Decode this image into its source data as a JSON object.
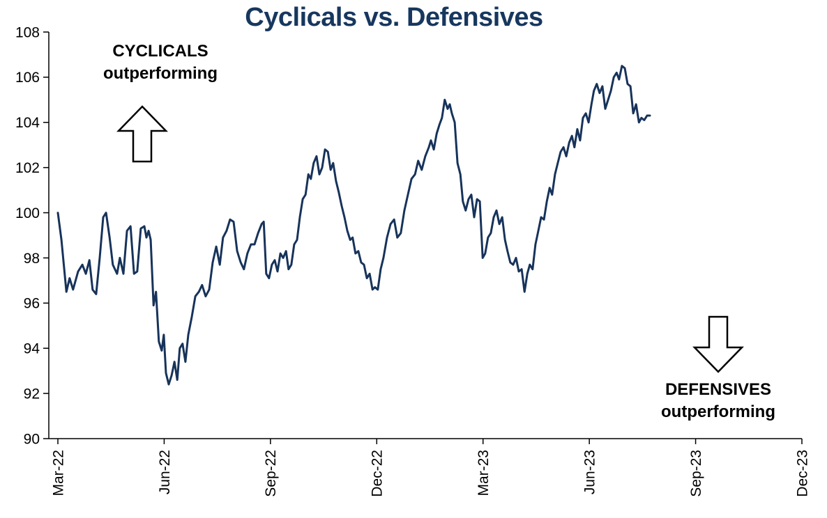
{
  "title": "Cyclicals vs. Defensives",
  "annotations": {
    "top_left": {
      "line1": "CYCLICALS",
      "line2": "outperforming"
    },
    "bottom_right": {
      "line1": "DEFENSIVES",
      "line2": "outperforming"
    }
  },
  "chart_data": {
    "type": "line",
    "title": "Cyclicals vs. Defensives",
    "xlabel": "",
    "ylabel": "",
    "ylim": [
      90,
      108
    ],
    "y_ticks": [
      90,
      92,
      94,
      96,
      98,
      100,
      102,
      104,
      106,
      108
    ],
    "x_ticks": [
      "Mar-22",
      "Jun-22",
      "Sep-22",
      "Dec-22",
      "Mar-23",
      "Jun-23",
      "Sep-23",
      "Dec-23"
    ],
    "x_tick_positions_months": [
      0,
      3,
      6,
      9,
      12,
      15,
      18,
      21
    ],
    "x_range_months": [
      0,
      21
    ],
    "grid": false,
    "legend": false,
    "line_color": "#17335a",
    "title_color": "#17375e",
    "points": [
      [
        0.0,
        100.0
      ],
      [
        0.1,
        98.8
      ],
      [
        0.24,
        96.5
      ],
      [
        0.33,
        97.1
      ],
      [
        0.43,
        96.6
      ],
      [
        0.57,
        97.4
      ],
      [
        0.69,
        97.7
      ],
      [
        0.79,
        97.3
      ],
      [
        0.89,
        97.9
      ],
      [
        0.98,
        96.6
      ],
      [
        1.08,
        96.4
      ],
      [
        1.18,
        98.0
      ],
      [
        1.28,
        99.8
      ],
      [
        1.36,
        100.0
      ],
      [
        1.46,
        98.9
      ],
      [
        1.55,
        97.7
      ],
      [
        1.67,
        97.3
      ],
      [
        1.75,
        98.0
      ],
      [
        1.85,
        97.3
      ],
      [
        1.95,
        99.2
      ],
      [
        2.05,
        99.4
      ],
      [
        2.15,
        97.3
      ],
      [
        2.24,
        97.4
      ],
      [
        2.34,
        99.3
      ],
      [
        2.44,
        99.4
      ],
      [
        2.5,
        98.9
      ],
      [
        2.56,
        99.2
      ],
      [
        2.62,
        98.8
      ],
      [
        2.7,
        95.9
      ],
      [
        2.77,
        96.5
      ],
      [
        2.85,
        94.3
      ],
      [
        2.93,
        93.9
      ],
      [
        2.99,
        94.6
      ],
      [
        3.05,
        92.9
      ],
      [
        3.13,
        92.4
      ],
      [
        3.21,
        92.8
      ],
      [
        3.29,
        93.4
      ],
      [
        3.37,
        92.6
      ],
      [
        3.44,
        94.0
      ],
      [
        3.52,
        94.2
      ],
      [
        3.6,
        93.4
      ],
      [
        3.68,
        94.6
      ],
      [
        3.78,
        95.4
      ],
      [
        3.88,
        96.3
      ],
      [
        3.98,
        96.5
      ],
      [
        4.07,
        96.8
      ],
      [
        4.17,
        96.3
      ],
      [
        4.27,
        96.6
      ],
      [
        4.37,
        97.8
      ],
      [
        4.47,
        98.5
      ],
      [
        4.57,
        97.7
      ],
      [
        4.66,
        98.9
      ],
      [
        4.76,
        99.2
      ],
      [
        4.86,
        99.7
      ],
      [
        4.96,
        99.6
      ],
      [
        5.06,
        98.3
      ],
      [
        5.16,
        97.8
      ],
      [
        5.25,
        97.5
      ],
      [
        5.35,
        98.2
      ],
      [
        5.45,
        98.6
      ],
      [
        5.55,
        98.6
      ],
      [
        5.65,
        99.1
      ],
      [
        5.75,
        99.5
      ],
      [
        5.81,
        99.6
      ],
      [
        5.88,
        97.3
      ],
      [
        5.96,
        97.1
      ],
      [
        6.04,
        97.7
      ],
      [
        6.12,
        97.9
      ],
      [
        6.2,
        97.4
      ],
      [
        6.28,
        98.2
      ],
      [
        6.36,
        98.0
      ],
      [
        6.44,
        98.3
      ],
      [
        6.51,
        97.5
      ],
      [
        6.59,
        97.7
      ],
      [
        6.67,
        98.6
      ],
      [
        6.75,
        98.8
      ],
      [
        6.83,
        99.8
      ],
      [
        6.91,
        100.6
      ],
      [
        6.99,
        100.8
      ],
      [
        7.07,
        101.7
      ],
      [
        7.14,
        101.5
      ],
      [
        7.22,
        102.2
      ],
      [
        7.3,
        102.5
      ],
      [
        7.38,
        101.7
      ],
      [
        7.46,
        102.0
      ],
      [
        7.54,
        102.8
      ],
      [
        7.62,
        102.7
      ],
      [
        7.7,
        101.9
      ],
      [
        7.77,
        102.2
      ],
      [
        7.85,
        101.4
      ],
      [
        7.93,
        100.9
      ],
      [
        8.01,
        100.3
      ],
      [
        8.09,
        99.8
      ],
      [
        8.17,
        99.2
      ],
      [
        8.25,
        98.8
      ],
      [
        8.32,
        98.9
      ],
      [
        8.4,
        98.2
      ],
      [
        8.48,
        98.3
      ],
      [
        8.56,
        97.8
      ],
      [
        8.64,
        97.7
      ],
      [
        8.72,
        97.1
      ],
      [
        8.8,
        97.3
      ],
      [
        8.88,
        96.6
      ],
      [
        8.95,
        96.7
      ],
      [
        9.03,
        96.6
      ],
      [
        9.11,
        97.5
      ],
      [
        9.19,
        98.0
      ],
      [
        9.29,
        98.9
      ],
      [
        9.39,
        99.5
      ],
      [
        9.49,
        99.7
      ],
      [
        9.58,
        98.9
      ],
      [
        9.68,
        99.1
      ],
      [
        9.78,
        100.1
      ],
      [
        9.88,
        100.8
      ],
      [
        9.98,
        101.5
      ],
      [
        10.08,
        101.7
      ],
      [
        10.17,
        102.3
      ],
      [
        10.27,
        101.9
      ],
      [
        10.37,
        102.5
      ],
      [
        10.47,
        102.9
      ],
      [
        10.53,
        103.2
      ],
      [
        10.61,
        102.8
      ],
      [
        10.69,
        103.5
      ],
      [
        10.77,
        103.9
      ],
      [
        10.84,
        104.2
      ],
      [
        10.92,
        105.0
      ],
      [
        11.0,
        104.6
      ],
      [
        11.06,
        104.8
      ],
      [
        11.12,
        104.4
      ],
      [
        11.2,
        104.0
      ],
      [
        11.28,
        102.2
      ],
      [
        11.36,
        101.7
      ],
      [
        11.43,
        100.5
      ],
      [
        11.51,
        100.1
      ],
      [
        11.59,
        100.6
      ],
      [
        11.67,
        100.8
      ],
      [
        11.75,
        99.8
      ],
      [
        11.83,
        100.6
      ],
      [
        11.91,
        100.5
      ],
      [
        11.99,
        98.0
      ],
      [
        12.06,
        98.2
      ],
      [
        12.14,
        98.9
      ],
      [
        12.22,
        99.1
      ],
      [
        12.3,
        99.8
      ],
      [
        12.38,
        100.1
      ],
      [
        12.46,
        99.5
      ],
      [
        12.54,
        99.8
      ],
      [
        12.62,
        98.8
      ],
      [
        12.69,
        98.3
      ],
      [
        12.77,
        97.8
      ],
      [
        12.85,
        97.7
      ],
      [
        12.93,
        98.0
      ],
      [
        13.01,
        97.4
      ],
      [
        13.09,
        97.5
      ],
      [
        13.17,
        96.5
      ],
      [
        13.25,
        97.3
      ],
      [
        13.32,
        97.7
      ],
      [
        13.4,
        97.5
      ],
      [
        13.48,
        98.6
      ],
      [
        13.56,
        99.2
      ],
      [
        13.64,
        99.8
      ],
      [
        13.72,
        99.7
      ],
      [
        13.8,
        100.5
      ],
      [
        13.88,
        101.1
      ],
      [
        13.95,
        100.8
      ],
      [
        14.03,
        101.7
      ],
      [
        14.11,
        102.2
      ],
      [
        14.19,
        102.7
      ],
      [
        14.27,
        102.9
      ],
      [
        14.35,
        102.5
      ],
      [
        14.43,
        103.1
      ],
      [
        14.51,
        103.4
      ],
      [
        14.58,
        102.9
      ],
      [
        14.66,
        103.7
      ],
      [
        14.74,
        103.2
      ],
      [
        14.82,
        104.2
      ],
      [
        14.9,
        104.4
      ],
      [
        14.98,
        104.0
      ],
      [
        15.06,
        104.8
      ],
      [
        15.13,
        105.4
      ],
      [
        15.21,
        105.7
      ],
      [
        15.29,
        105.3
      ],
      [
        15.37,
        105.6
      ],
      [
        15.45,
        104.6
      ],
      [
        15.53,
        105.0
      ],
      [
        15.61,
        105.4
      ],
      [
        15.69,
        106.0
      ],
      [
        15.77,
        106.2
      ],
      [
        15.84,
        105.9
      ],
      [
        15.92,
        106.5
      ],
      [
        16.0,
        106.4
      ],
      [
        16.08,
        105.7
      ],
      [
        16.16,
        105.6
      ],
      [
        16.24,
        104.4
      ],
      [
        16.32,
        104.8
      ],
      [
        16.4,
        104.0
      ],
      [
        16.47,
        104.2
      ],
      [
        16.55,
        104.1
      ],
      [
        16.63,
        104.3
      ],
      [
        16.71,
        104.3
      ]
    ]
  }
}
